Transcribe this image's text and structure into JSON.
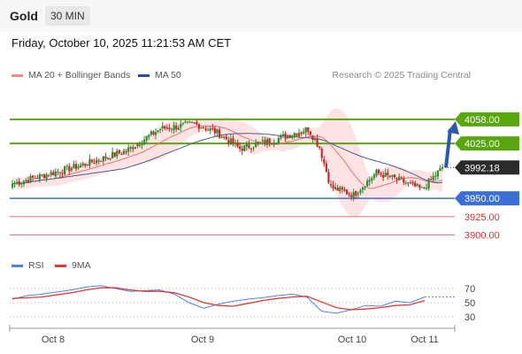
{
  "header": {
    "title": "Gold",
    "timeframe": "30 MIN"
  },
  "datetime": "Friday, October 10, 2025 11:21:53 AM CET",
  "legend": {
    "bollinger_label": "MA 20 + Bollinger Bands",
    "ma50_label": "MA 50",
    "rsi_label": "RSI",
    "rsi_ma_label": "9MA"
  },
  "source": "Research © 2025 Trading Central",
  "colors": {
    "bull": "#2e8b2e",
    "bear": "#c62828",
    "ma20": "#e57373",
    "band_fill": "#fde3e3",
    "ma50": "#4a5d8c",
    "resistance": "#5aa610",
    "pivot": "#3b6fd6",
    "support": "#e57373",
    "arrow": "#2a5aa8",
    "rsi": "#4a86e8",
    "rsi_ma": "#e53935",
    "price_tag": "#2b2b2b"
  },
  "chart_data": [
    {
      "type": "candlestick",
      "ylim": [
        3880,
        4105
      ],
      "x_tick_labels": [
        "Oct 8",
        "Oct 9",
        "Oct 10",
        "Oct 11"
      ],
      "current_price": 3992.18,
      "levels": [
        {
          "label": "4058.00",
          "value": 4058.0,
          "kind": "resistance"
        },
        {
          "label": "4025.00",
          "value": 4025.0,
          "kind": "resistance"
        },
        {
          "label": "3950.00",
          "value": 3950.0,
          "kind": "pivot"
        },
        {
          "label": "3925.00",
          "value": 3925.0,
          "kind": "support"
        },
        {
          "label": "3900.00",
          "value": 3900.0,
          "kind": "support"
        }
      ],
      "forecast": {
        "from": 3992.18,
        "to": 4058.0
      },
      "series": [
        {
          "name": "MA 20 + Bollinger Bands",
          "kind": "ma_band"
        },
        {
          "name": "MA 50",
          "kind": "ma50"
        }
      ],
      "key_points": [
        {
          "x": 0,
          "close": 3970
        },
        {
          "x": 30,
          "close": 3995
        },
        {
          "x": 50,
          "close": 4015
        },
        {
          "x": 65,
          "close": 4045
        },
        {
          "x": 80,
          "close": 4052
        },
        {
          "x": 90,
          "close": 4040
        },
        {
          "x": 100,
          "close": 4018
        },
        {
          "x": 115,
          "close": 4030
        },
        {
          "x": 130,
          "close": 4045
        },
        {
          "x": 135,
          "close": 4020
        },
        {
          "x": 140,
          "close": 3965
        },
        {
          "x": 150,
          "close": 3955
        },
        {
          "x": 160,
          "close": 3985
        },
        {
          "x": 170,
          "close": 3975
        },
        {
          "x": 180,
          "close": 3962
        },
        {
          "x": 189,
          "close": 3992.18
        }
      ],
      "n_candles": 190
    },
    {
      "type": "line",
      "ylabel": "RSI",
      "ylim": [
        15,
        90
      ],
      "y_ticks": [
        30,
        50,
        70
      ],
      "series": [
        {
          "name": "RSI",
          "values": [
            55,
            60,
            62,
            65,
            68,
            72,
            74,
            70,
            66,
            67,
            68,
            62,
            50,
            42,
            48,
            52,
            55,
            57,
            60,
            62,
            58,
            38,
            35,
            40,
            46,
            45,
            52,
            50,
            58
          ]
        },
        {
          "name": "9MA",
          "values": [
            56,
            57,
            58,
            61,
            64,
            68,
            71,
            71,
            68,
            66,
            66,
            64,
            58,
            50,
            46,
            45,
            49,
            53,
            56,
            58,
            59,
            51,
            43,
            40,
            41,
            43,
            46,
            47,
            53
          ]
        }
      ]
    }
  ]
}
